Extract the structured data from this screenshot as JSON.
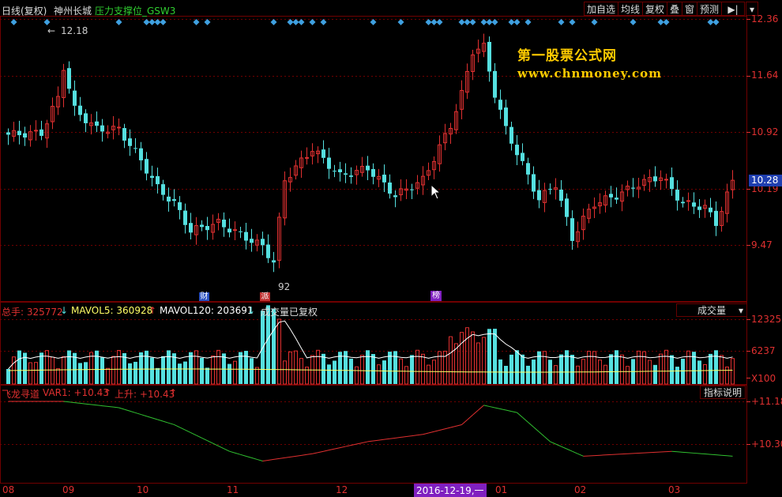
{
  "header": {
    "period_label": "日线(复权)",
    "stock_name": "神州长城",
    "indicator_name": "压力支撑位_GSW3"
  },
  "toolbar": {
    "buttons": [
      "加自选",
      "均线",
      "复权",
      "叠",
      "窗",
      "预测"
    ],
    "arrow_icon": "play-arrow-icon",
    "dropdown_icon": "chevron-down-icon"
  },
  "price_axis": {
    "ticks": [
      "12.36",
      "11.64",
      "10.92",
      "10.19",
      "9.47"
    ],
    "current_price": "10.28"
  },
  "annotations": {
    "high_label": "12.18",
    "low_label": "92",
    "badge_left": "财",
    "badge_mid": "派",
    "badge_right": "榜"
  },
  "watermark": {
    "line1": "第一股票公式网",
    "line2": "www.chnmoney.com"
  },
  "volume_panel": {
    "total_label": "总手: 325772",
    "mavol5_label": "MAVOL5: 360928",
    "mavol120_label": "MAVOL120: 203691",
    "note": "成交量已复权",
    "select_value": "成交量",
    "ticks": [
      "12325",
      "6237",
      "X100"
    ]
  },
  "indicator_panel": {
    "name": "飞龙寻道",
    "var1_label": "VAR1: +10.43",
    "rise_label": "上升: +10.43",
    "help_button": "指标说明",
    "ticks": [
      "+11.18",
      "+10.30"
    ]
  },
  "x_axis": {
    "labels": [
      "08",
      "09",
      "10",
      "11",
      "12",
      "2016-12-19,一",
      "01",
      "02",
      "03"
    ]
  },
  "colors": {
    "up": "#e03030",
    "down": "#55e0e0",
    "grid": "#700000",
    "diamond": "#3fa0e0",
    "ma5": "#ffffff",
    "ma120": "#ffff66"
  }
}
